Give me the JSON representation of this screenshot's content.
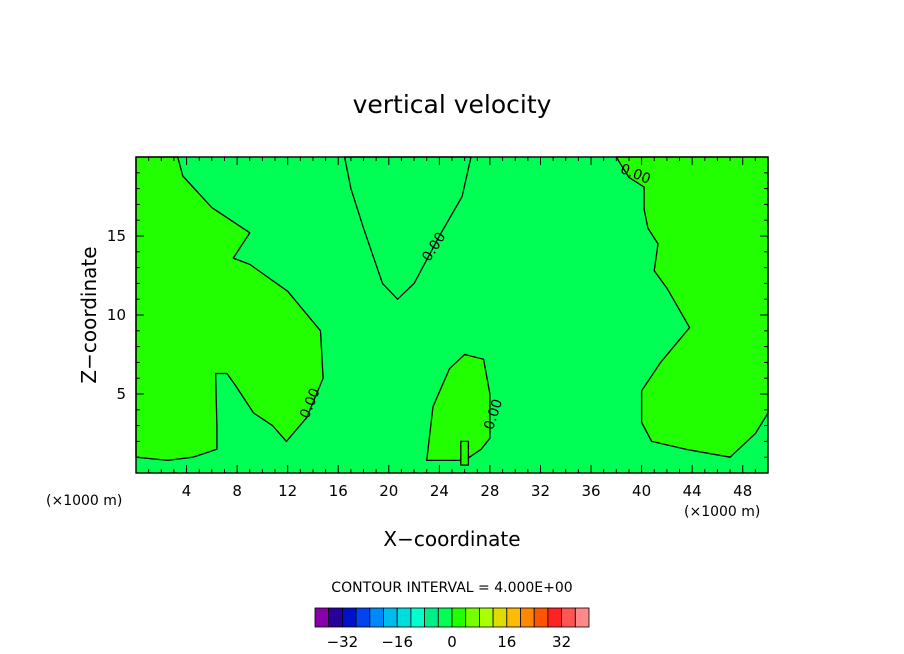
{
  "chart_data": {
    "type": "contour",
    "title": "vertical velocity",
    "xlabel": "X−coordinate",
    "ylabel": "Z−coordinate",
    "x_unit": "(×1000 m)",
    "xlim": [
      0,
      50
    ],
    "ylim": [
      0,
      20
    ],
    "x_ticks": [
      4,
      8,
      12,
      16,
      20,
      24,
      28,
      32,
      36,
      40,
      44,
      48
    ],
    "y_ticks": [
      5,
      10,
      15
    ],
    "contour_interval_text": "CONTOUR INTERVAL = 4.000E+00",
    "contour_levels": [
      {
        "value": 0,
        "label": "0.00"
      }
    ],
    "regions": [
      {
        "id": "left-positive",
        "sign": "positive",
        "polygon": [
          [
            0,
            20
          ],
          [
            3.3,
            20
          ],
          [
            3.7,
            18.8
          ],
          [
            6,
            16.8
          ],
          [
            9,
            15.2
          ],
          [
            7.7,
            13.6
          ],
          [
            9,
            13.2
          ],
          [
            12,
            11.5
          ],
          [
            14.6,
            9
          ],
          [
            14.8,
            6
          ],
          [
            13.5,
            3.5
          ],
          [
            11.9,
            2
          ],
          [
            10.8,
            3
          ],
          [
            9.3,
            3.8
          ],
          [
            7.9,
            5.5
          ],
          [
            7.2,
            6.3
          ],
          [
            6.3,
            6.3
          ],
          [
            6.4,
            3
          ],
          [
            6.4,
            1.5
          ],
          [
            4.5,
            1
          ],
          [
            2.5,
            0.8
          ],
          [
            0,
            1
          ]
        ]
      },
      {
        "id": "center-top-negative",
        "sign": "negative",
        "polygon": [
          [
            16.5,
            20
          ],
          [
            17,
            18
          ],
          [
            18,
            15.5
          ],
          [
            19.5,
            12
          ],
          [
            20.7,
            11
          ],
          [
            22,
            12
          ],
          [
            24,
            15
          ],
          [
            25.8,
            17.5
          ],
          [
            26.5,
            20
          ]
        ]
      },
      {
        "id": "center-bottom-positive",
        "sign": "positive",
        "polygon": [
          [
            23,
            0.8
          ],
          [
            23.5,
            4.2
          ],
          [
            24.8,
            6.6
          ],
          [
            26,
            7.5
          ],
          [
            27.5,
            7.2
          ],
          [
            28,
            5
          ],
          [
            28,
            2.2
          ],
          [
            27.3,
            1.5
          ],
          [
            26,
            0.8
          ]
        ]
      },
      {
        "id": "right-positive",
        "sign": "positive",
        "polygon": [
          [
            50,
            20
          ],
          [
            38,
            20
          ],
          [
            38.3,
            19.6
          ],
          [
            39,
            18.7
          ],
          [
            40.2,
            18.1
          ],
          [
            40.2,
            16.7
          ],
          [
            40.5,
            15.5
          ],
          [
            41.3,
            14.5
          ],
          [
            41,
            12.8
          ],
          [
            42,
            11.7
          ],
          [
            43.8,
            9.2
          ],
          [
            41.5,
            7
          ],
          [
            40,
            5.2
          ],
          [
            40,
            3.2
          ],
          [
            40.8,
            2
          ],
          [
            43.5,
            1.5
          ],
          [
            47,
            1
          ],
          [
            49,
            2.5
          ],
          [
            50,
            3.8
          ]
        ]
      },
      {
        "id": "tiny-peak",
        "sign": "positive",
        "polygon": [
          [
            25.7,
            0.5
          ],
          [
            25.7,
            2
          ],
          [
            26.3,
            2
          ],
          [
            26.3,
            0.5
          ]
        ]
      }
    ],
    "colorbar": {
      "ticks": [
        -32,
        -16,
        0,
        16,
        32
      ],
      "colors": [
        "#8800aa",
        "#2a009c",
        "#0011cc",
        "#0044ee",
        "#0088ff",
        "#00bbee",
        "#00dddd",
        "#00ffcc",
        "#00ee88",
        "#00ff55",
        "#22ff00",
        "#77ff00",
        "#aaff00",
        "#dddd00",
        "#ffbb00",
        "#ff8800",
        "#ff5500",
        "#ff2222",
        "#ff5555",
        "#ff8888"
      ]
    },
    "fill_colors": {
      "positive": "#22ff00",
      "negative": "#00ff55"
    }
  }
}
